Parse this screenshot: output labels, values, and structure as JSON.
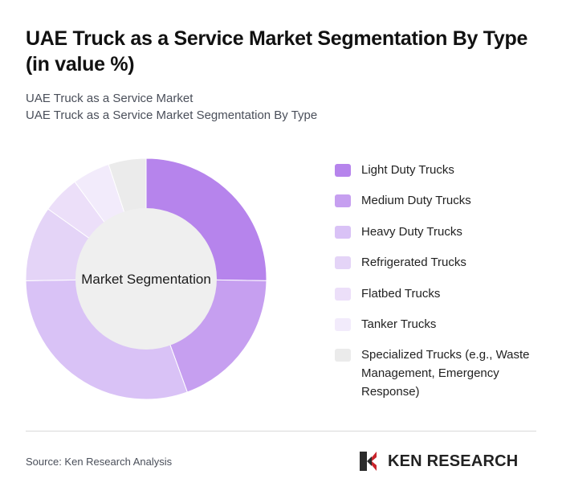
{
  "title": "UAE Truck as a Service Market Segmentation By Type (in value %)",
  "subtitle_line1": "UAE Truck as a Service Market",
  "subtitle_line2": "UAE Truck as a Service Market Segmentation By Type",
  "center_label": "Market Segmentation",
  "source": "Source: Ken Research Analysis",
  "logo_text": "KEN RESEARCH",
  "chart_data": {
    "type": "pie",
    "variant": "donut",
    "categories": [
      "Light Duty Trucks",
      "Medium Duty Trucks",
      "Heavy Duty Trucks",
      "Refrigerated Trucks",
      "Flatbed Trucks",
      "Tanker Trucks",
      "Specialized Trucks (e.g., Waste Management, Emergency Response)"
    ],
    "values": [
      25,
      19,
      30,
      10,
      5,
      5,
      5
    ],
    "colors": [
      "#b684ec",
      "#c69ff0",
      "#d9c2f6",
      "#e4d4f7",
      "#ecdff9",
      "#f2ebfb",
      "#ebebeb"
    ],
    "legend_position": "right"
  }
}
